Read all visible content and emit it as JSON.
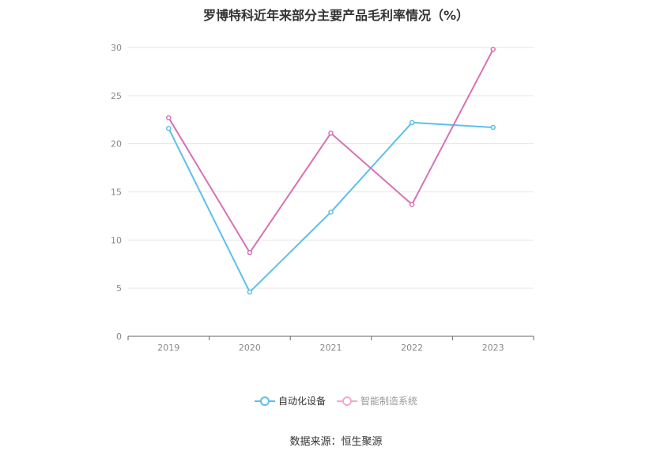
{
  "chart_data": {
    "type": "line",
    "title": "罗博特科近年来部分主要产品毛利率情况（%）",
    "categories": [
      "2019",
      "2020",
      "2021",
      "2022",
      "2023"
    ],
    "yticks": [
      "0",
      "5",
      "10",
      "15",
      "20",
      "25",
      "30"
    ],
    "ylim": [
      0,
      30
    ],
    "grid": true,
    "legend_position": "bottom",
    "series": [
      {
        "name": "自动化设备",
        "color": "#5bc0eb",
        "active": true,
        "values": [
          21.6,
          4.6,
          12.9,
          22.2,
          21.7
        ]
      },
      {
        "name": "智能制造系统",
        "color": "#d871b4",
        "legend_color": "#f2a8d2",
        "active": false,
        "values": [
          22.7,
          8.7,
          21.1,
          13.7,
          29.8
        ]
      }
    ]
  },
  "footer": {
    "source": "数据来源：恒生聚源"
  }
}
